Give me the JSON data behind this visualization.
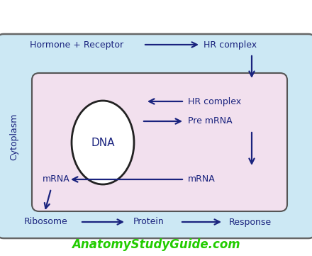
{
  "bg_outer": "#cce8f4",
  "bg_fig": "#ffffff",
  "nucleus_bg": "#f2e0ee",
  "nucleus_edge": "#555555",
  "dna_ellipse_color": "white",
  "dna_ellipse_edge": "#222222",
  "arrow_color": "#1a237e",
  "text_color": "#1a237e",
  "website_color": "#22cc00",
  "cytoplasm_label": "Cytoplasm",
  "dna_label": "DNA",
  "hormone_receptor": "Hormone + Receptor",
  "hr_complex_top": "HR complex",
  "hr_complex_nucleus": "HR complex",
  "pre_mrna": "Pre mRNA",
  "mrna_right": "mRNA",
  "mrna_left": "mRNA",
  "ribosome": "Ribosome",
  "protein": "Protein",
  "response": "Response",
  "website": "AnatomyStudyGuide.com",
  "fig_width": 4.4,
  "fig_height": 3.61,
  "dpi": 100
}
